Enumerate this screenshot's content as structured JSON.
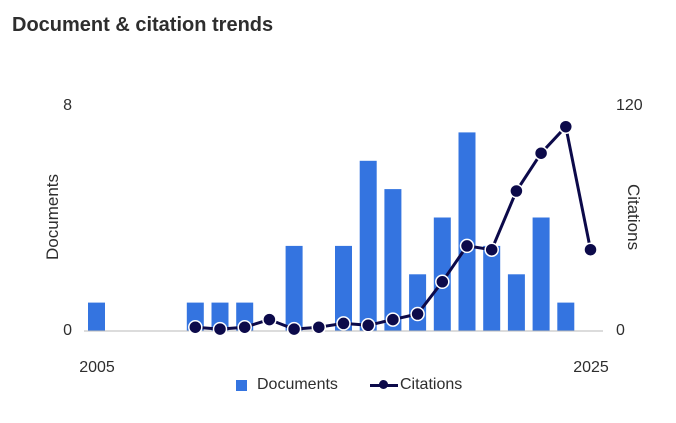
{
  "title": "Document & citation trends",
  "colors": {
    "documents": "#3474e0",
    "citations": "#0c0a4a",
    "baseline": "#b9b9b9"
  },
  "chart_data": {
    "type": "bar+line",
    "title": "Document & citation trends",
    "x": [
      2005,
      2006,
      2007,
      2008,
      2009,
      2010,
      2011,
      2012,
      2013,
      2014,
      2015,
      2016,
      2017,
      2018,
      2019,
      2020,
      2021,
      2022,
      2023,
      2024,
      2025
    ],
    "x_tick_labels": [
      "2005",
      "2025"
    ],
    "left_axis": {
      "label": "Documents",
      "ylim": [
        0,
        8
      ],
      "tick_labels": [
        "0",
        "8"
      ]
    },
    "right_axis": {
      "label": "Citations",
      "ylim": [
        0,
        120
      ],
      "tick_labels": [
        "0",
        "120"
      ]
    },
    "series": [
      {
        "name": "Documents",
        "type": "bar",
        "axis": "left",
        "values": [
          1,
          0,
          0,
          0,
          1,
          1,
          1,
          0,
          3,
          0,
          3,
          6,
          5,
          2,
          4,
          7,
          3,
          2,
          4,
          1,
          null
        ]
      },
      {
        "name": "Citations",
        "type": "line",
        "axis": "right",
        "values": [
          null,
          null,
          null,
          null,
          2,
          1,
          2,
          6,
          1,
          2,
          4,
          3,
          6,
          9,
          26,
          45,
          43,
          74,
          94,
          108,
          43
        ]
      }
    ],
    "legend": {
      "position": "bottom",
      "entries": [
        "Documents",
        "Citations"
      ]
    }
  }
}
